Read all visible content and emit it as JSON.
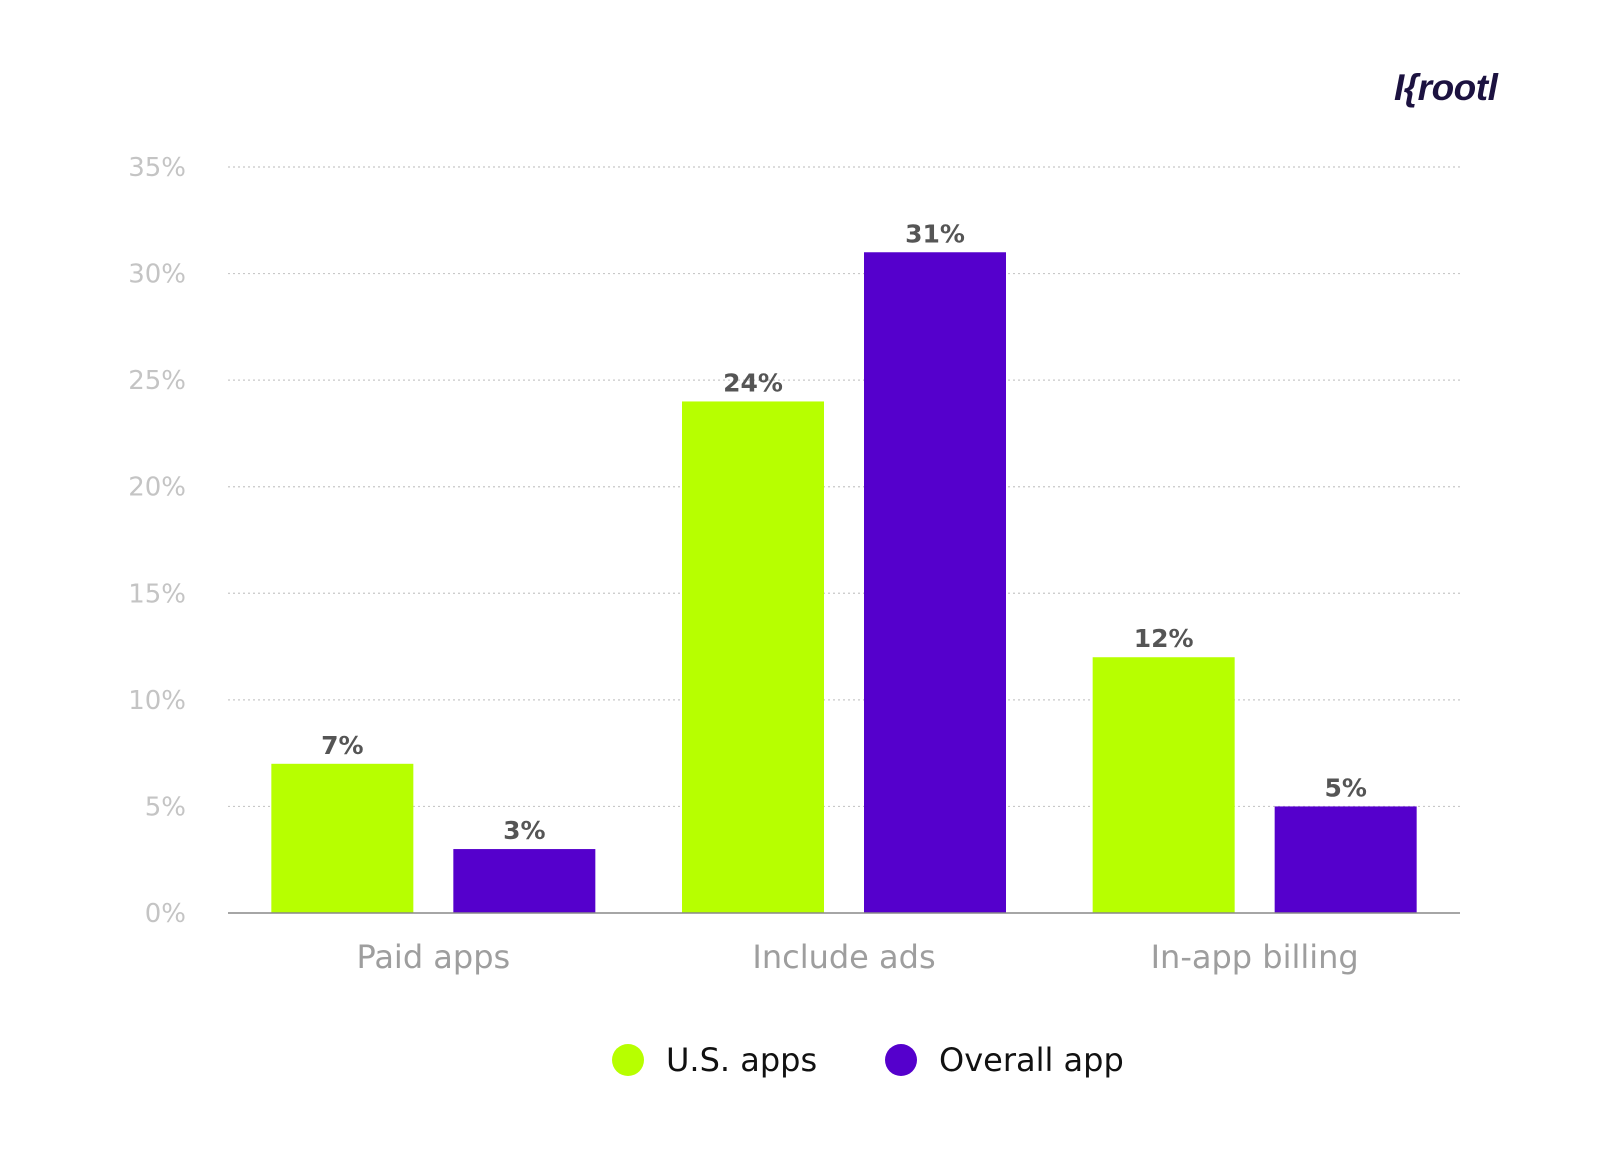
{
  "logo": {
    "text": "I{rootl"
  },
  "chart_data": {
    "type": "bar",
    "categories": [
      "Paid apps",
      "Include ads",
      "In-app billing"
    ],
    "series": [
      {
        "name": "U.S. apps",
        "values": [
          7,
          24,
          12
        ],
        "labels": [
          "7%",
          "24%",
          "12%"
        ],
        "color": "#b7ff00"
      },
      {
        "name": "Overall app",
        "values": [
          3,
          31,
          5
        ],
        "labels": [
          "3%",
          "31%",
          "5%"
        ],
        "color": "#5500cc"
      }
    ],
    "ylim": [
      0,
      35
    ],
    "yticks": [
      "0%",
      "5%",
      "10%",
      "15%",
      "20%",
      "25%",
      "30%",
      "35%"
    ],
    "grid": true,
    "legend_position": "bottom"
  },
  "colors": {
    "tick_label": "#c4c4c4",
    "category_label": "#9e9e9e",
    "value_label": "#555555",
    "gridline": "#c8c8c8",
    "axis": "#888888"
  }
}
